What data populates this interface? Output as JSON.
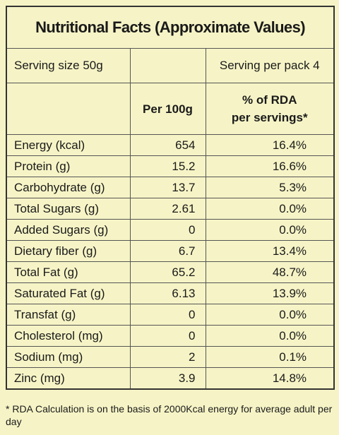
{
  "title": "Nutritional Facts (Approximate Values)",
  "serving": {
    "size": "Serving size 50g",
    "per_pack": "Serving per pack 4"
  },
  "header": {
    "per_100g": "Per 100g",
    "rda": [
      "% of RDA",
      "per servings*"
    ]
  },
  "rows": [
    [
      "Energy (kcal)",
      "654",
      "16.4%"
    ],
    [
      "Protein (g)",
      "15.2",
      "16.6%"
    ],
    [
      "Carbohydrate (g)",
      "13.7",
      "5.3%"
    ],
    [
      "Total Sugars (g)",
      "2.61",
      "0.0%"
    ],
    [
      "Added Sugars (g)",
      "0",
      "0.0%"
    ],
    [
      "Dietary fiber  (g)",
      "6.7",
      "13.4%"
    ],
    [
      "Total Fat (g)",
      "65.2",
      "48.7%"
    ],
    [
      "Saturated Fat (g)",
      "6.13",
      "13.9%"
    ],
    [
      "Transfat (g)",
      "0",
      "0.0%"
    ],
    [
      "Cholesterol (mg)",
      "0",
      "0.0%"
    ],
    [
      "Sodium (mg)",
      "2",
      "0.1%"
    ],
    [
      "Zinc (mg)",
      "3.9",
      "14.8%"
    ]
  ],
  "footnote": "* RDA Calculation is on the basis of 2000Kcal energy for average adult per day"
}
